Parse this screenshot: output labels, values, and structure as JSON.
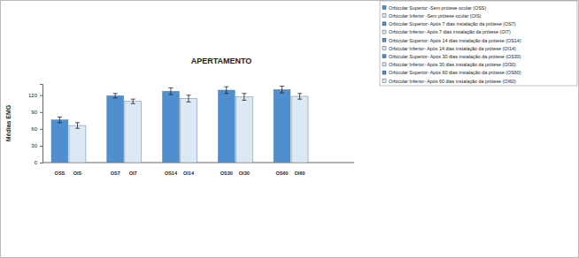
{
  "chart_data": {
    "type": "bar",
    "title": "APERTAMENTO",
    "y_label": "Médias EMG",
    "categories": [
      "OSS",
      "OIS",
      "OS7",
      "OI7",
      "OS14",
      "OI14",
      "OS30",
      "OI30",
      "OS60",
      "OI60"
    ],
    "series": [
      {
        "name": "Orbicular Superior -Sem prótese ocular (OSS)",
        "color": "#4f8fcf",
        "values": [
          76,
          null,
          null,
          null,
          null,
          null,
          null,
          null,
          null,
          null
        ],
        "errors": [
          5,
          null,
          null,
          null,
          null,
          null,
          null,
          null,
          null,
          null
        ]
      },
      {
        "name": "Orbicular Inferior -Sem prótese ocular (OIS)",
        "color": "#dce9f5",
        "values": [
          null,
          66,
          null,
          null,
          null,
          null,
          null,
          null,
          null,
          null
        ],
        "errors": [
          null,
          5,
          null,
          null,
          null,
          null,
          null,
          null,
          null,
          null
        ]
      },
      {
        "name": "Orbicular Superior- Após 7 dias instalação da prótese (OS7)",
        "color": "#4f8fcf",
        "values": [
          null,
          null,
          119,
          null,
          null,
          null,
          null,
          null,
          null,
          null
        ],
        "errors": [
          null,
          null,
          4,
          null,
          null,
          null,
          null,
          null,
          null,
          null
        ]
      },
      {
        "name": "Orbicular Inferior- Após 7 dias instalação da prótese (OI7)",
        "color": "#dce9f5",
        "values": [
          null,
          null,
          null,
          109,
          null,
          null,
          null,
          null,
          null,
          null
        ],
        "errors": [
          null,
          null,
          null,
          4,
          null,
          null,
          null,
          null,
          null,
          null
        ]
      },
      {
        "name": "Orbicular Superior- Após 14 dias instalação da prótese (OS14)",
        "color": "#4f8fcf",
        "values": [
          null,
          null,
          null,
          null,
          127,
          null,
          null,
          null,
          null,
          null
        ],
        "errors": [
          null,
          null,
          null,
          null,
          6,
          null,
          null,
          null,
          null,
          null
        ]
      },
      {
        "name": "Orbicular Inferior- Após 14 dias instalação da prótese (OI14)",
        "color": "#dce9f5",
        "values": [
          null,
          null,
          null,
          null,
          null,
          114,
          null,
          null,
          null,
          null
        ],
        "errors": [
          null,
          null,
          null,
          null,
          null,
          6,
          null,
          null,
          null,
          null
        ]
      },
      {
        "name": "Orbicular Superior- Após 30 dias instalação da prótese (OS30)",
        "color": "#4f8fcf",
        "values": [
          null,
          null,
          null,
          null,
          null,
          null,
          129,
          null,
          null,
          null
        ],
        "errors": [
          null,
          null,
          null,
          null,
          null,
          null,
          6,
          null,
          null,
          null
        ]
      },
      {
        "name": "Orbicular Inferior- Após 30 dias instalação da prótese (OI30)",
        "color": "#dce9f5",
        "values": [
          null,
          null,
          null,
          null,
          null,
          null,
          null,
          117,
          null,
          null
        ],
        "errors": [
          null,
          null,
          null,
          null,
          null,
          null,
          null,
          6,
          null,
          null
        ]
      },
      {
        "name": "Orbicular Superior- Após 60 dias instalação da prótese (OS60)",
        "color": "#4f8fcf",
        "values": [
          null,
          null,
          null,
          null,
          null,
          null,
          null,
          null,
          130,
          null
        ],
        "errors": [
          null,
          null,
          null,
          null,
          null,
          null,
          null,
          null,
          6,
          null
        ]
      },
      {
        "name": "Orbicular Inferior- Após 60 dias instalação da prótese (OI60)",
        "color": "#dce9f5",
        "values": [
          null,
          null,
          null,
          null,
          null,
          null,
          null,
          null,
          null,
          118
        ],
        "errors": [
          null,
          null,
          null,
          null,
          null,
          null,
          null,
          null,
          null,
          5
        ]
      }
    ],
    "ylim": [
      0,
      140
    ],
    "yticks": [
      0,
      30,
      60,
      90,
      120
    ],
    "grid": false,
    "legend": "top-right"
  }
}
